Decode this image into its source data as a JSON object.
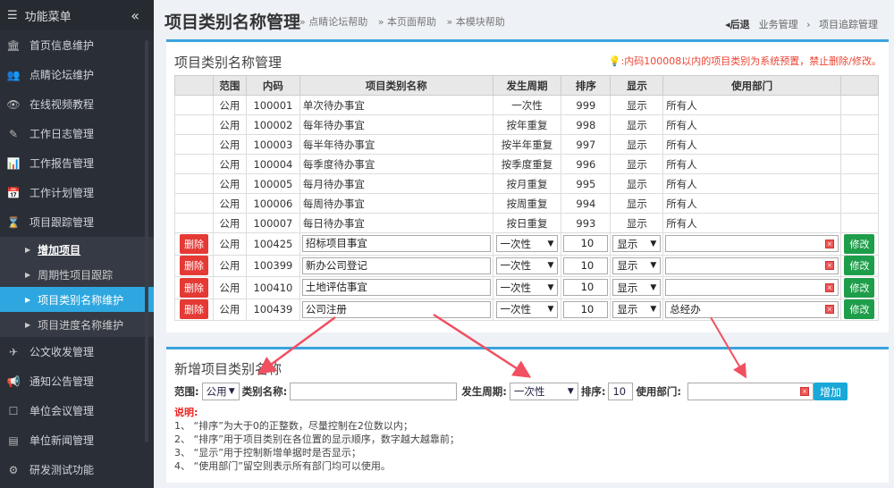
{
  "sidebar": {
    "title": "功能菜单",
    "items": [
      "首页信息维护",
      "点睛论坛维护",
      "在线视频教程",
      "工作日志管理",
      "工作报告管理",
      "工作计划管理",
      "项目跟踪管理"
    ],
    "subitems": [
      "增加项目",
      "周期性项目跟踪",
      "项目类别名称维护",
      "项目进度名称维护"
    ],
    "items2": [
      "公文收发管理",
      "通知公告管理",
      "单位会议管理",
      "单位新闻管理",
      "研发测试功能"
    ]
  },
  "header": {
    "title": "项目类别名称管理",
    "helps": [
      "» 点睛论坛帮助",
      "» 本页面帮助",
      "» 本模块帮助"
    ],
    "back": "后退",
    "crumbs": [
      "业务管理",
      "›",
      "项目追踪管理"
    ]
  },
  "list": {
    "title": "项目类别名称管理",
    "notice": ":内码100008以内的项目类别为系统预置，禁止删除/修改。",
    "headers": [
      "",
      "范围",
      "内码",
      "项目类别名称",
      "发生周期",
      "排序",
      "显示",
      "使用部门",
      ""
    ],
    "rows": [
      [
        "公用",
        "100001",
        "单次待办事宜",
        "一次性",
        "999",
        "显示",
        "所有人"
      ],
      [
        "公用",
        "100002",
        "每年待办事宜",
        "按年重复",
        "998",
        "显示",
        "所有人"
      ],
      [
        "公用",
        "100003",
        "每半年待办事宜",
        "按半年重复",
        "997",
        "显示",
        "所有人"
      ],
      [
        "公用",
        "100004",
        "每季度待办事宜",
        "按季度重复",
        "996",
        "显示",
        "所有人"
      ],
      [
        "公用",
        "100005",
        "每月待办事宜",
        "按月重复",
        "995",
        "显示",
        "所有人"
      ],
      [
        "公用",
        "100006",
        "每周待办事宜",
        "按周重复",
        "994",
        "显示",
        "所有人"
      ],
      [
        "公用",
        "100007",
        "每日待办事宜",
        "按日重复",
        "993",
        "显示",
        "所有人"
      ]
    ],
    "edit_rows": [
      [
        "公用",
        "100425",
        "招标项目事宜",
        "一次性",
        "10",
        "显示",
        ""
      ],
      [
        "公用",
        "100399",
        "新办公司登记",
        "一次性",
        "10",
        "显示",
        ""
      ],
      [
        "公用",
        "100410",
        "土地评估事宜",
        "一次性",
        "10",
        "显示",
        ""
      ],
      [
        "公用",
        "100439",
        "公司注册",
        "一次性",
        "10",
        "显示",
        "总经办"
      ]
    ],
    "delete_label": "删除",
    "modify_label": "修改"
  },
  "add": {
    "title": "新增项目类别名称",
    "scope_label": "范围:",
    "scope_value": "公用",
    "name_label": "类别名称:",
    "name_value": "",
    "cycle_label": "发生周期:",
    "cycle_value": "一次性",
    "order_label": "排序:",
    "order_value": "10",
    "dept_label": "使用部门:",
    "dept_value": "",
    "add_label": "增加",
    "notes_title": "说明:",
    "notes": [
      "1、 “排序”为大于0的正整数，尽量控制在2位数以内；",
      "2、 “排序”用于项目类别在各位置的显示顺序，数字越大越靠前；",
      "3、 “显示”用于控制新增单据时是否显示；",
      "4、 “使用部门”留空则表示所有部门均可以使用。"
    ]
  },
  "colors": {
    "accent": "#3aa3de",
    "delete": "#e53935",
    "modify": "#1e9e4a",
    "sidebar": "#2a2f37",
    "annotation": "#f05060"
  }
}
